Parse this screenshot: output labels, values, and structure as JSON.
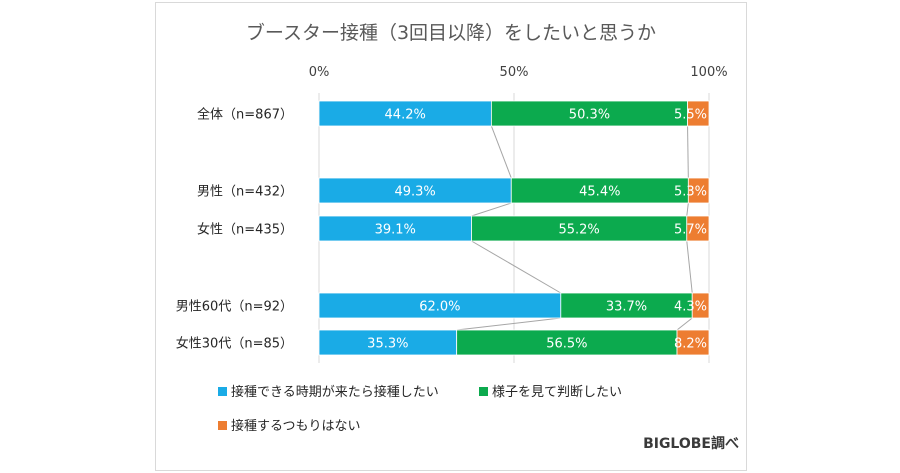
{
  "chart_data": {
    "type": "bar",
    "orientation": "horizontal",
    "stacked": "100%",
    "title": "ブースター接種（3回目以降）をしたいと思うか",
    "categories": [
      "全体（n=867）",
      "男性（n=432）",
      "女性（n=435）",
      "男性60代（n=92）",
      "女性30代（n=85）"
    ],
    "series": [
      {
        "name": "接種できる時期が来たら接種したい",
        "values": [
          44.2,
          49.3,
          39.1,
          62.0,
          35.3
        ],
        "color": "#1aabe6"
      },
      {
        "name": "様子を見て判断したい",
        "values": [
          50.3,
          45.4,
          55.2,
          33.7,
          56.5
        ],
        "color": "#0caa4e"
      },
      {
        "name": "接種するつもりはない",
        "values": [
          5.5,
          5.3,
          5.7,
          4.3,
          8.2
        ],
        "color": "#ed7d31"
      }
    ],
    "data_labels": [
      [
        "44.2%",
        "50.3%",
        "5.5%"
      ],
      [
        "49.3%",
        "45.4%",
        "5.3%"
      ],
      [
        "39.1%",
        "55.2%",
        "5.7%"
      ],
      [
        "62.0%",
        "33.7%",
        "4.3%"
      ],
      [
        "35.3%",
        "56.5%",
        "8.2%"
      ]
    ],
    "xlim": [
      0,
      100
    ],
    "ticks": [
      "0%",
      "50%",
      "100%"
    ],
    "tick_values": [
      0,
      50,
      100
    ],
    "gridlines": true,
    "series_lines": true,
    "legend_position": "bottom",
    "credit": "BIGLOBE調べ"
  }
}
